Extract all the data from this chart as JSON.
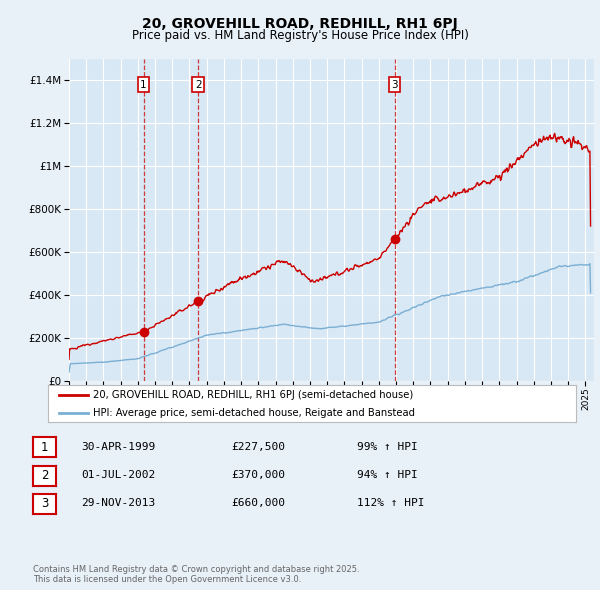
{
  "title": "20, GROVEHILL ROAD, REDHILL, RH1 6PJ",
  "subtitle": "Price paid vs. HM Land Registry's House Price Index (HPI)",
  "bg_color": "#e8f0f8",
  "plot_bg_color": "#d8e8f4",
  "grid_color": "#ffffff",
  "red_color": "#cc0000",
  "blue_color": "#7bafd4",
  "sale_points": [
    {
      "date_year": 1999.33,
      "price": 227500,
      "label": "1"
    },
    {
      "date_year": 2002.5,
      "price": 370000,
      "label": "2"
    },
    {
      "date_year": 2013.91,
      "price": 660000,
      "label": "3"
    }
  ],
  "sale_vlines": [
    1999.33,
    2002.5,
    2013.91
  ],
  "legend_red": "20, GROVEHILL ROAD, REDHILL, RH1 6PJ (semi-detached house)",
  "legend_blue": "HPI: Average price, semi-detached house, Reigate and Banstead",
  "table_rows": [
    {
      "num": "1",
      "date": "30-APR-1999",
      "price": "£227,500",
      "hpi": "99% ↑ HPI"
    },
    {
      "num": "2",
      "date": "01-JUL-2002",
      "price": "£370,000",
      "hpi": "94% ↑ HPI"
    },
    {
      "num": "3",
      "date": "29-NOV-2013",
      "price": "£660,000",
      "hpi": "112% ↑ HPI"
    }
  ],
  "footer": "Contains HM Land Registry data © Crown copyright and database right 2025.\nThis data is licensed under the Open Government Licence v3.0.",
  "ylim": [
    0,
    1500000
  ],
  "yticks": [
    0,
    200000,
    400000,
    600000,
    800000,
    1000000,
    1200000,
    1400000
  ],
  "xmin": 1995.0,
  "xmax": 2025.5,
  "xticks": [
    1995,
    1996,
    1997,
    1998,
    1999,
    2000,
    2001,
    2002,
    2003,
    2004,
    2005,
    2006,
    2007,
    2008,
    2009,
    2010,
    2011,
    2012,
    2013,
    2014,
    2015,
    2016,
    2017,
    2018,
    2019,
    2020,
    2021,
    2022,
    2023,
    2024,
    2025
  ]
}
